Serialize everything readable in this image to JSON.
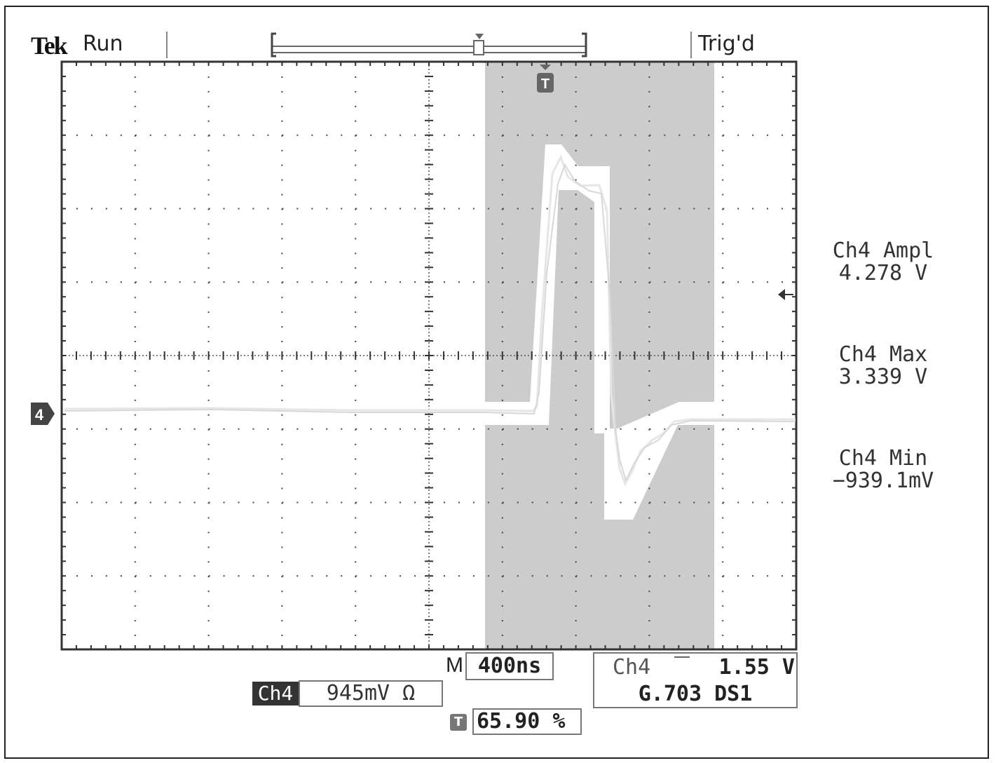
{
  "header": {
    "brand": "Tek",
    "status": "Run",
    "trigger_state": "Trig'd"
  },
  "channel_marker": "4",
  "trigger_marker": "T",
  "measurements": [
    {
      "label": "Ch4 Ampl",
      "value": "4.278 V"
    },
    {
      "label": "Ch4 Max",
      "value": "3.339 V"
    },
    {
      "label": "Ch4 Min",
      "value": "−939.1mV"
    }
  ],
  "timebase": {
    "prefix": "M",
    "value": "400ns"
  },
  "channel_scale": {
    "channel": "Ch4",
    "value": "945mV Ω"
  },
  "trigger_source": {
    "channel": "Ch4",
    "level": "1.55 V",
    "standard": "G.703 DS1"
  },
  "trigger_position": {
    "value": "65.90 %"
  },
  "colors": {
    "mask": "#cccccc",
    "waveform": "#e6e6e6",
    "grid": "#333333",
    "background": "#ffffff"
  }
}
